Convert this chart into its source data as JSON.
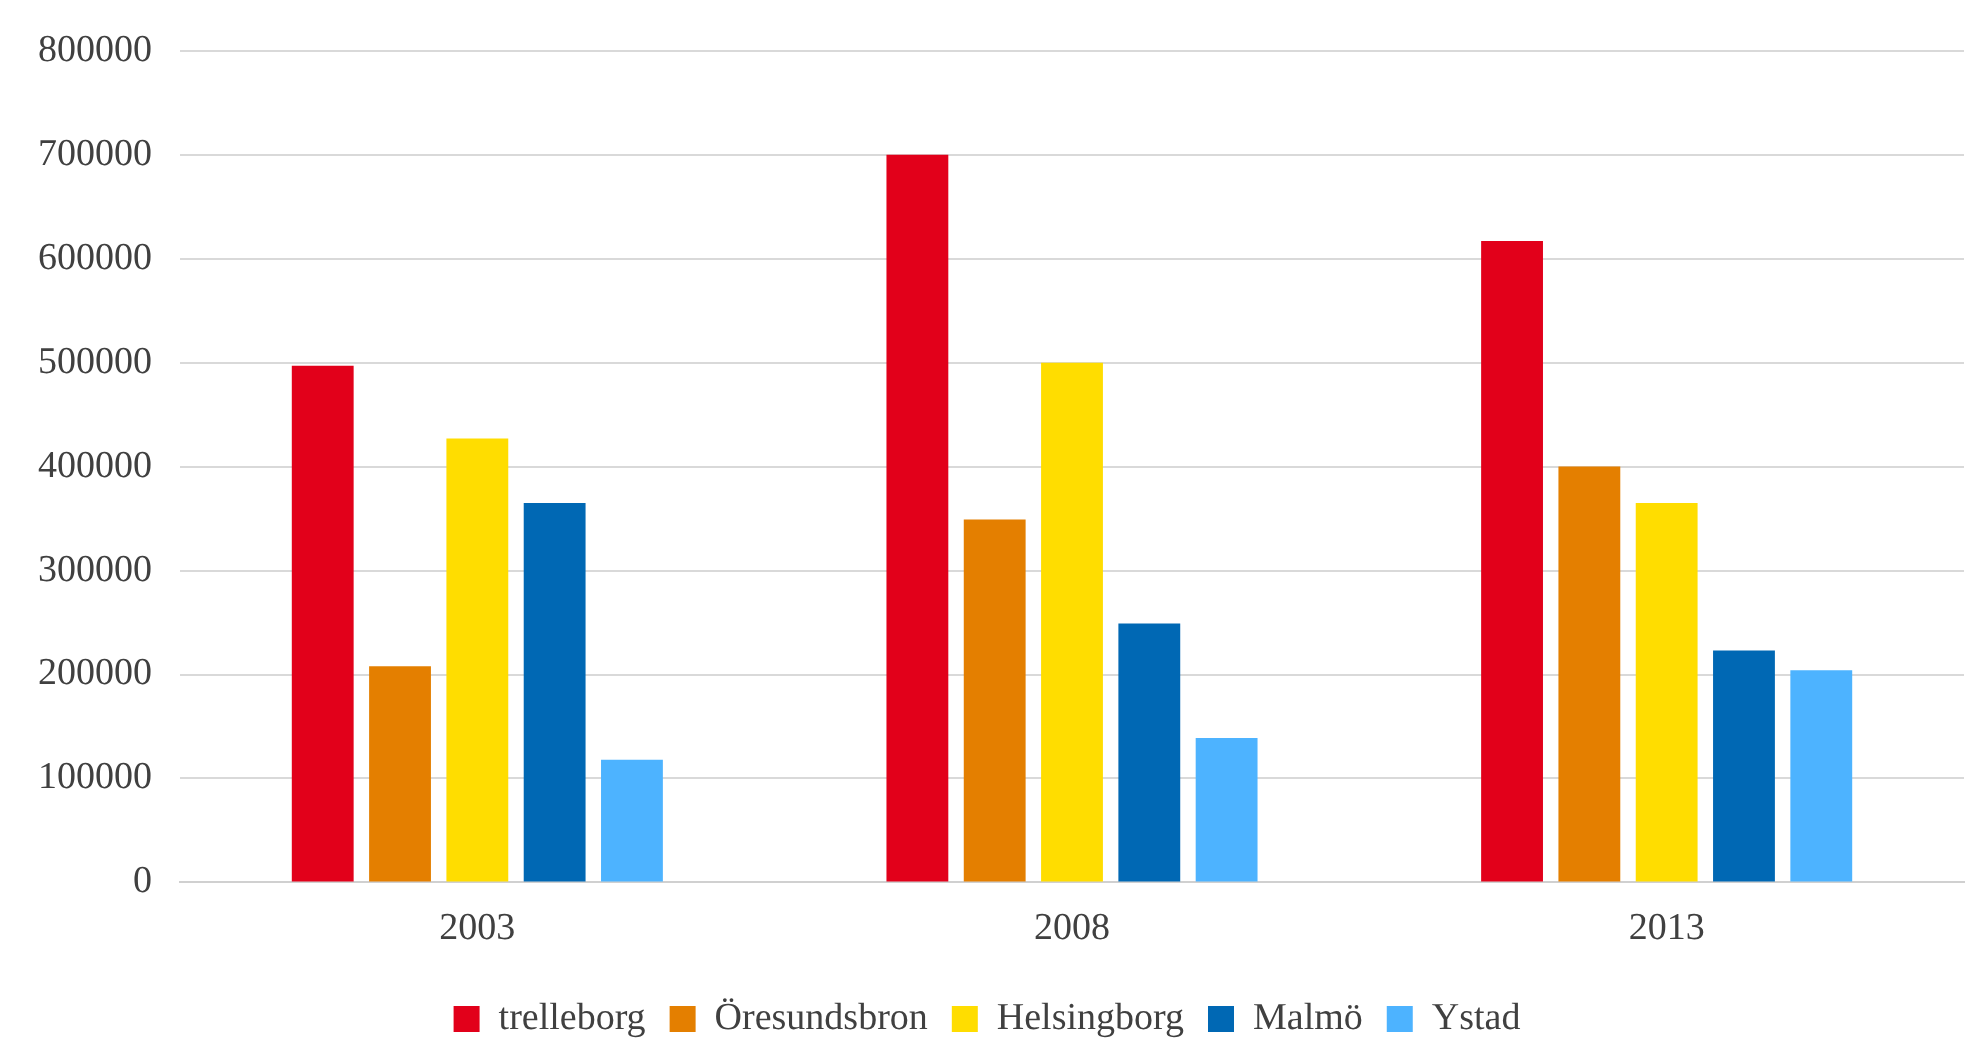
{
  "chart_data": {
    "type": "bar",
    "categories": [
      "2003",
      "2008",
      "2013"
    ],
    "series": [
      {
        "name": "trelleborg",
        "color": "#e2001a",
        "values": [
          497000,
          700000,
          617000
        ]
      },
      {
        "name": "Öresundsbron",
        "color": "#e47f00",
        "values": [
          208000,
          349000,
          400000
        ]
      },
      {
        "name": "Helsingborg",
        "color": "#ffdd00",
        "values": [
          427000,
          500000,
          365000
        ]
      },
      {
        "name": "Malmö",
        "color": "#0068b4",
        "values": [
          365000,
          249000,
          223000
        ]
      },
      {
        "name": "Ystad",
        "color": "#4db3ff",
        "values": [
          118000,
          139000,
          204000
        ]
      }
    ],
    "ylim": [
      0,
      800000
    ],
    "yticks": [
      0,
      100000,
      200000,
      300000,
      400000,
      500000,
      600000,
      700000,
      800000
    ],
    "grid": "y",
    "legend": "bottom"
  }
}
